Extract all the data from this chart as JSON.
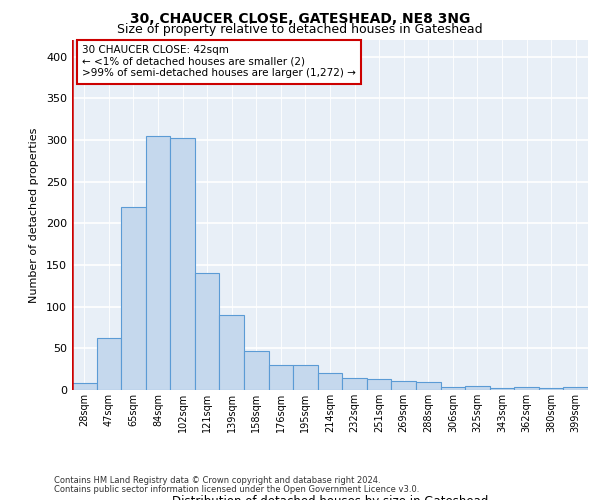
{
  "title1": "30, CHAUCER CLOSE, GATESHEAD, NE8 3NG",
  "title2": "Size of property relative to detached houses in Gateshead",
  "xlabel": "Distribution of detached houses by size in Gateshead",
  "ylabel": "Number of detached properties",
  "categories": [
    "28sqm",
    "47sqm",
    "65sqm",
    "84sqm",
    "102sqm",
    "121sqm",
    "139sqm",
    "158sqm",
    "176sqm",
    "195sqm",
    "214sqm",
    "232sqm",
    "251sqm",
    "269sqm",
    "288sqm",
    "306sqm",
    "325sqm",
    "343sqm",
    "362sqm",
    "380sqm",
    "399sqm"
  ],
  "values": [
    8,
    63,
    220,
    305,
    303,
    140,
    90,
    47,
    30,
    30,
    20,
    15,
    13,
    11,
    10,
    4,
    5,
    3,
    4,
    3,
    4
  ],
  "bar_color": "#c5d8ed",
  "bar_edge_color": "#5b9bd5",
  "highlight_line_color": "#cc0000",
  "ylim": [
    0,
    420
  ],
  "yticks": [
    0,
    50,
    100,
    150,
    200,
    250,
    300,
    350,
    400
  ],
  "background_color": "#e8eff7",
  "grid_color": "#ffffff",
  "ann_line1": "30 CHAUCER CLOSE: 42sqm",
  "ann_line2": "← <1% of detached houses are smaller (2)",
  "ann_line3": ">99% of semi-detached houses are larger (1,272) →",
  "footer1": "Contains HM Land Registry data © Crown copyright and database right 2024.",
  "footer2": "Contains public sector information licensed under the Open Government Licence v3.0."
}
